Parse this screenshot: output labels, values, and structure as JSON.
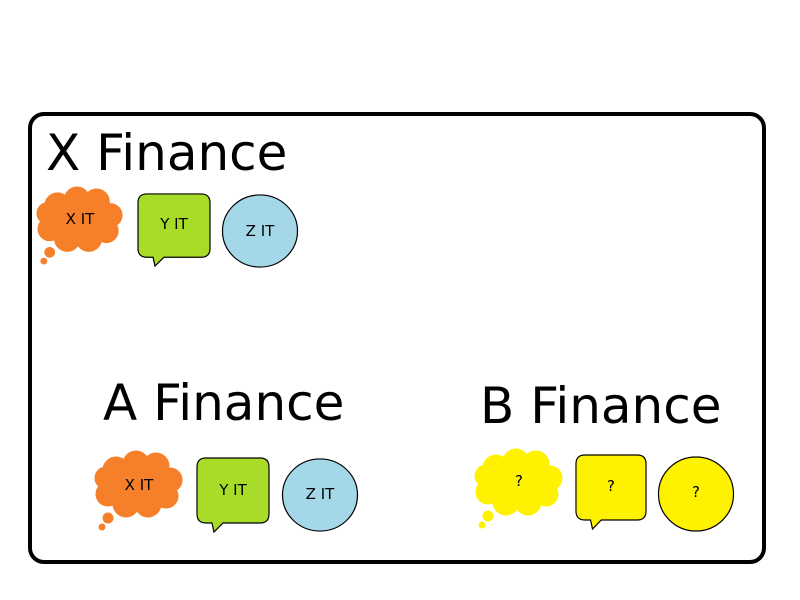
{
  "colors": {
    "frame_border": "#000000",
    "cloud_orange": "#f6802a",
    "speech_green": "#a8dc28",
    "circle_blue": "#a4d8e8",
    "unknown_yellow": "#fff200"
  },
  "groups": {
    "x": {
      "title": "X Finance",
      "bubbles": [
        {
          "shape": "cloud-icon",
          "label": "X IT",
          "color": "#f6802a"
        },
        {
          "shape": "speech-bubble-icon",
          "label": "Y IT",
          "color": "#a8dc28"
        },
        {
          "shape": "circle-icon",
          "label": "Z IT",
          "color": "#a4d8e8"
        }
      ]
    },
    "a": {
      "title": "A Finance",
      "bubbles": [
        {
          "shape": "cloud-icon",
          "label": "X IT",
          "color": "#f6802a"
        },
        {
          "shape": "speech-bubble-icon",
          "label": "Y IT",
          "color": "#a8dc28"
        },
        {
          "shape": "circle-icon",
          "label": "Z IT",
          "color": "#a4d8e8"
        }
      ]
    },
    "b": {
      "title": "B Finance",
      "bubbles": [
        {
          "shape": "cloud-icon",
          "label": "?",
          "color": "#fff200"
        },
        {
          "shape": "speech-bubble-icon",
          "label": "?",
          "color": "#fff200"
        },
        {
          "shape": "circle-icon",
          "label": "?",
          "color": "#fff200"
        }
      ]
    }
  }
}
